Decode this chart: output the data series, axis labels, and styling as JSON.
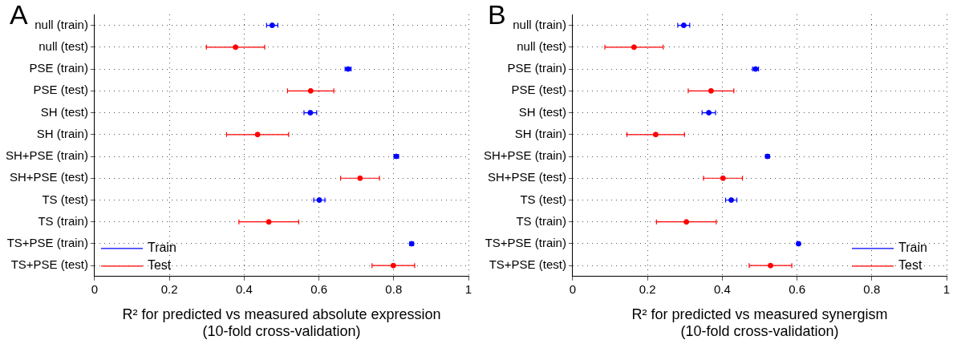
{
  "chart_data": [
    {
      "type": "scatter",
      "orientation": "horizontal",
      "annotations": [
        "A"
      ],
      "xlabel": "R² for predicted vs measured absolute expression\n(10-fold cross-validation)",
      "categories": [
        "null (train)",
        "null (test)",
        "PSE (train)",
        "PSE (test)",
        "SH (test)",
        "SH (train)",
        "SH+PSE (train)",
        "SH+PSE (test)",
        "TS (test)",
        "TS (train)",
        "TS+PSE (train)",
        "TS+PSE (test)"
      ],
      "series": [
        {
          "name": "Train",
          "color": "#0000ff",
          "values": [
            0.475,
            null,
            0.678,
            null,
            0.577,
            null,
            0.807,
            null,
            0.601,
            null,
            0.848,
            null
          ],
          "errors": [
            0.015,
            null,
            0.008,
            null,
            0.017,
            null,
            0.006,
            null,
            0.015,
            null,
            0.005,
            null
          ]
        },
        {
          "name": "Test",
          "color": "#ff0000",
          "values": [
            null,
            0.377,
            null,
            0.578,
            null,
            0.436,
            null,
            0.71,
            null,
            0.466,
            null,
            0.799
          ],
          "errors": [
            null,
            0.078,
            null,
            0.062,
            null,
            0.083,
            null,
            0.052,
            null,
            0.08,
            null,
            0.057
          ]
        }
      ],
      "xlim": [
        0,
        1
      ],
      "xticks": [
        0,
        0.2,
        0.4,
        0.6,
        0.8,
        1
      ],
      "grid": true,
      "legend": "bottom left",
      "marker": "circle"
    },
    {
      "type": "scatter",
      "orientation": "horizontal",
      "annotations": [
        "B"
      ],
      "xlabel": "R² for predicted vs measured synergism\n(10-fold cross-validation)",
      "categories": [
        "null (train)",
        "null (test)",
        "PSE (train)",
        "PSE (test)",
        "SH (test)",
        "SH (train)",
        "SH+PSE (train)",
        "SH+PSE (test)",
        "TS (test)",
        "TS (train)",
        "TS+PSE (train)",
        "TS+PSE (test)"
      ],
      "series": [
        {
          "name": "Train",
          "color": "#0000ff",
          "values": [
            0.297,
            null,
            0.489,
            null,
            0.364,
            null,
            0.521,
            null,
            0.424,
            null,
            0.604,
            null
          ],
          "errors": [
            0.016,
            null,
            0.008,
            null,
            0.018,
            null,
            0.005,
            null,
            0.015,
            null,
            0.003,
            null
          ]
        },
        {
          "name": "Test",
          "color": "#ff0000",
          "values": [
            null,
            0.164,
            null,
            0.37,
            null,
            0.222,
            null,
            0.402,
            null,
            0.304,
            null,
            0.529
          ],
          "errors": [
            null,
            0.078,
            null,
            0.061,
            null,
            0.077,
            null,
            0.052,
            null,
            0.08,
            null,
            0.057
          ]
        }
      ],
      "xlim": [
        0,
        1
      ],
      "xticks": [
        0,
        0.2,
        0.4,
        0.6,
        0.8,
        1
      ],
      "grid": true,
      "legend": "bottom right",
      "marker": "circle"
    }
  ]
}
